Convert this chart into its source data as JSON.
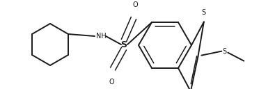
{
  "bg_color": "#ffffff",
  "line_color": "#1a1a1a",
  "line_width": 1.4,
  "font_size": 7.0,
  "figsize": [
    3.72,
    1.28
  ],
  "dpi": 100,
  "xlim": [
    0,
    372
  ],
  "ylim": [
    0,
    128
  ]
}
